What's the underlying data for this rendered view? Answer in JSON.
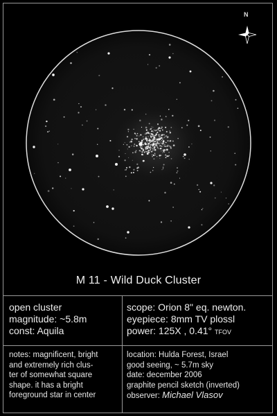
{
  "sketch": {
    "title": "M 11 - Wild Duck Cluster",
    "compass_label": "N"
  },
  "object_info": {
    "type": "open cluster",
    "magnitude": "magnitude: ~5.8m",
    "constellation": "const: Aquila"
  },
  "equipment": {
    "scope": "scope: Orion 8\" eq. newton.",
    "eyepiece": "eyepiece: 8mm TV plossl",
    "power": "power: 125X , 0.41°",
    "fov_unit": "TFOV"
  },
  "notes": {
    "line1": "notes: magnificent, bright",
    "line2": "and extremely rich clus-",
    "line3": "ter of somewhat square",
    "line4": "shape. it has a bright",
    "line5": "foreground star in center"
  },
  "session": {
    "location": "location: Hulda Forest, Israel",
    "conditions": "good seeing, ~ 5.7m sky",
    "date": "date: december 2006",
    "medium": "graphite pencil sketch (inverted)",
    "observer_label": "observer:",
    "observer_name": "Michael Vlasov"
  }
}
